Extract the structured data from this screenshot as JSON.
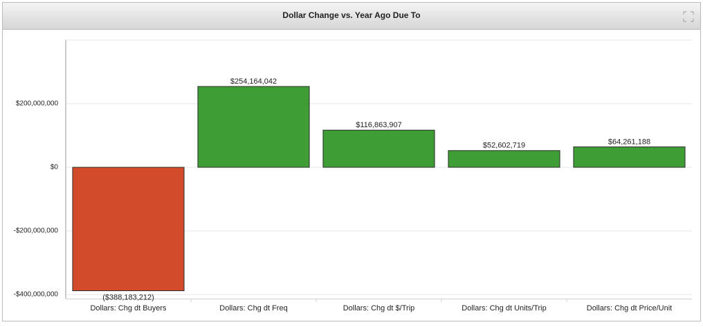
{
  "chart_data": {
    "type": "bar",
    "title": "Dollar Change vs. Year Ago Due To",
    "categories": [
      "Dollars: Chg dt Buyers",
      "Dollars: Chg dt Freq",
      "Dollars: Chg dt $/Trip",
      "Dollars: Chg dt Units/Trip",
      "Dollars: Chg dt Price/Unit"
    ],
    "values": [
      -388183212,
      254164042,
      116863907,
      52602719,
      64261188
    ],
    "value_labels": [
      "($388,183,212)",
      "$254,164,042",
      "$116,863,907",
      "$52,602,719",
      "$64,261,188"
    ],
    "colors": [
      "#d24b2a",
      "#3f9d35",
      "#3f9d35",
      "#3f9d35",
      "#3f9d35"
    ],
    "ylim": [
      -400000000,
      400000000
    ],
    "yticks": [
      {
        "value": -400000000,
        "label": "-$400,000,000"
      },
      {
        "value": -200000000,
        "label": "-$200,000,000"
      },
      {
        "value": 0,
        "label": "$0"
      },
      {
        "value": 200000000,
        "label": "$200,000,000"
      }
    ],
    "grid": true
  }
}
